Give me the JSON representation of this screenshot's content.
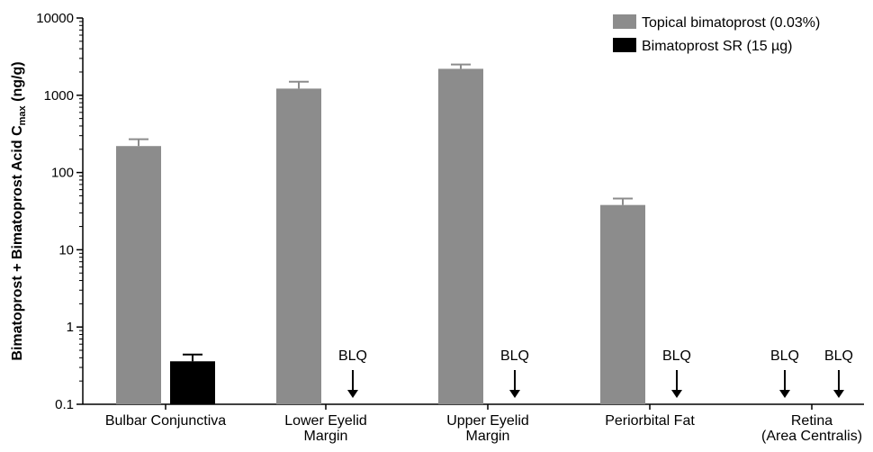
{
  "chart_data": {
    "type": "bar",
    "yscale": "log",
    "ylim": [
      0.1,
      10000
    ],
    "yticks": [
      "0.1",
      "1",
      "10",
      "100",
      "1000",
      "10000"
    ],
    "ylabel": {
      "main": "Bimatoprost + Bimatoprost Acid C",
      "subscript": "max",
      "unit": " (ng/g)"
    },
    "categories": [
      [
        "Bulbar Conjunctiva"
      ],
      [
        "Lower Eyelid",
        "Margin"
      ],
      [
        "Upper Eyelid",
        "Margin"
      ],
      [
        "Periorbital Fat"
      ],
      [
        "Retina",
        "(Area Centralis)"
      ]
    ],
    "series": [
      {
        "name": "Topical bimatoprost (0.03%)",
        "color": "#8c8c8c",
        "values": [
          220,
          1220,
          2200,
          38,
          null
        ],
        "errors": [
          270,
          1500,
          2500,
          46,
          null
        ],
        "blq": [
          false,
          false,
          false,
          false,
          true
        ]
      },
      {
        "name": "Bimatoprost SR (15 µg)",
        "color": "#000000",
        "values": [
          0.36,
          null,
          null,
          null,
          null
        ],
        "errors": [
          0.44,
          null,
          null,
          null,
          null
        ],
        "blq": [
          false,
          true,
          true,
          true,
          true
        ]
      }
    ],
    "blq_label": "BLQ",
    "legend_position": "top-right"
  }
}
